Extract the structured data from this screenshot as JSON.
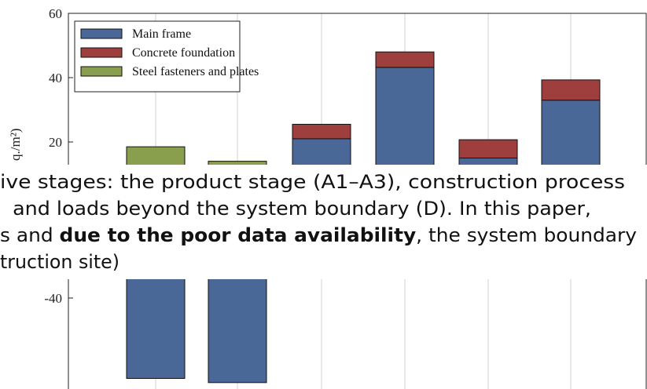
{
  "charts": [
    {
      "type": "stacked-bar",
      "ylabel": "q./m²)",
      "categories": [
        null,
        null,
        null,
        null,
        null,
        null
      ],
      "series": [
        {
          "name": "Main frame",
          "color": "#4a6897",
          "values": [
            0,
            0,
            21,
            43.2,
            15,
            33
          ]
        },
        {
          "name": "Concrete foundation",
          "color": "#9e3f3d",
          "values": [
            0,
            0,
            4.5,
            4.8,
            5.7,
            6.3
          ]
        },
        {
          "name": "Steel fasteners and plates",
          "color": "#8a9f4e",
          "values": [
            18.5,
            14,
            0,
            0,
            0,
            0
          ]
        }
      ],
      "ylim": [
        0,
        60
      ],
      "yticks": [
        20,
        40,
        60
      ],
      "grid": true
    },
    {
      "type": "bar",
      "categories": [
        null,
        null,
        null,
        null,
        null,
        null
      ],
      "series": [
        {
          "name": "Main frame",
          "color": "#4a6897",
          "values": [
            -65,
            -66.3,
            null,
            null,
            null,
            null
          ]
        }
      ],
      "ylim": [
        -70,
        0
      ],
      "yticks": [
        -40
      ],
      "grid": true
    }
  ],
  "paragraph": {
    "line1": "ive stages: the product stage (A1–A3), construction process",
    "line2": " and loads beyond the system boundary (D). In this paper,",
    "line3_start": "s and ",
    "line3_bold": "due to the poor data availability",
    "line3_end": ", the system boundary",
    "line4": "truction site)"
  }
}
